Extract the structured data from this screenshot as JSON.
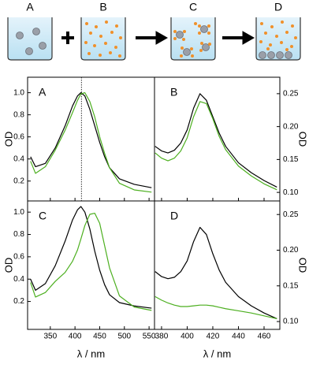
{
  "schematic": {
    "labels": [
      "A",
      "B",
      "C",
      "D"
    ]
  },
  "chart_data": [
    {
      "type": "line",
      "label": "A",
      "ylabel": "OD",
      "x": [
        310,
        320,
        340,
        360,
        380,
        395,
        405,
        412,
        420,
        430,
        440,
        450,
        460,
        470,
        490,
        520,
        555
      ],
      "xlim": [
        304,
        561
      ],
      "ylim": [
        0.02,
        1.14
      ],
      "yticks": [
        {
          "value": 0.2,
          "label": "0.2"
        },
        0.4,
        0.6,
        0.8,
        {
          "value": 1,
          "label": "1.0"
        }
      ],
      "vline": 413,
      "series": [
        {
          "color": "#000000",
          "values": [
            0.42,
            0.33,
            0.36,
            0.5,
            0.7,
            0.88,
            0.97,
            1.0,
            0.97,
            0.85,
            0.7,
            0.55,
            0.42,
            0.32,
            0.22,
            0.17,
            0.14
          ]
        },
        {
          "color": "#4caf1f",
          "values": [
            0.38,
            0.27,
            0.33,
            0.48,
            0.66,
            0.82,
            0.93,
            0.99,
            1.0,
            0.92,
            0.78,
            0.6,
            0.45,
            0.32,
            0.18,
            0.12,
            0.1
          ]
        }
      ]
    },
    {
      "type": "line",
      "label": "B",
      "ylabel": "OD",
      "x": [
        375,
        380,
        385,
        390,
        395,
        400,
        405,
        410,
        415,
        420,
        425,
        430,
        440,
        450,
        460,
        470
      ],
      "xlim": [
        374.5,
        472.3
      ],
      "y2lim": [
        0.087,
        0.275
      ],
      "y2ticks": [
        {
          "value": 0.1,
          "label": "0.10"
        },
        0.15,
        {
          "value": 0.2,
          "label": "0.20"
        },
        0.25
      ],
      "series": [
        {
          "color": "#000000",
          "axis": "y2",
          "values": [
            0.17,
            0.163,
            0.16,
            0.164,
            0.175,
            0.195,
            0.228,
            0.25,
            0.24,
            0.215,
            0.19,
            0.17,
            0.145,
            0.13,
            0.118,
            0.108
          ]
        },
        {
          "color": "#4caf1f",
          "axis": "y2",
          "values": [
            0.16,
            0.152,
            0.148,
            0.152,
            0.163,
            0.183,
            0.215,
            0.238,
            0.235,
            0.212,
            0.185,
            0.165,
            0.14,
            0.125,
            0.113,
            0.104
          ]
        }
      ]
    },
    {
      "type": "line",
      "label": "C",
      "ylabel": "OD",
      "xlabel": "λ / nm",
      "x": [
        310,
        320,
        340,
        360,
        380,
        395,
        405,
        412,
        420,
        430,
        440,
        450,
        460,
        470,
        490,
        520,
        555
      ],
      "xlim": [
        304,
        561
      ],
      "ylim": [
        -0.05,
        1.1
      ],
      "xticks": [
        350,
        400,
        450,
        500,
        550
      ],
      "yticks": [
        {
          "value": 0.2,
          "label": "0.2"
        },
        0.4,
        0.6,
        0.8,
        {
          "value": 1,
          "label": "1.0"
        }
      ],
      "series": [
        {
          "color": "#000000",
          "values": [
            0.4,
            0.3,
            0.36,
            0.52,
            0.74,
            0.93,
            1.02,
            1.05,
            1.0,
            0.85,
            0.65,
            0.48,
            0.35,
            0.26,
            0.19,
            0.16,
            0.14
          ]
        },
        {
          "color": "#4caf1f",
          "values": [
            0.37,
            0.24,
            0.28,
            0.38,
            0.46,
            0.56,
            0.66,
            0.76,
            0.88,
            0.98,
            0.99,
            0.9,
            0.7,
            0.5,
            0.25,
            0.15,
            0.12
          ]
        }
      ]
    },
    {
      "type": "line",
      "label": "D",
      "ylabel": "OD",
      "xlabel": "λ / nm",
      "x": [
        375,
        380,
        385,
        390,
        395,
        400,
        405,
        410,
        415,
        420,
        425,
        430,
        440,
        450,
        460,
        470
      ],
      "xlim": [
        374.5,
        472.3
      ],
      "y2lim": [
        0.089,
        0.269
      ],
      "xticks": [
        380,
        400,
        420,
        440,
        460
      ],
      "y2ticks": [
        {
          "value": 0.1,
          "label": "0.10"
        },
        0.15,
        {
          "value": 0.2,
          "label": "0.20"
        },
        0.25
      ],
      "series": [
        {
          "color": "#000000",
          "axis": "y2",
          "values": [
            0.17,
            0.163,
            0.16,
            0.162,
            0.17,
            0.185,
            0.212,
            0.232,
            0.222,
            0.195,
            0.172,
            0.155,
            0.135,
            0.122,
            0.112,
            0.104
          ]
        },
        {
          "color": "#4caf1f",
          "axis": "y2",
          "values": [
            0.135,
            0.13,
            0.126,
            0.123,
            0.121,
            0.121,
            0.122,
            0.123,
            0.123,
            0.122,
            0.12,
            0.118,
            0.115,
            0.112,
            0.108,
            0.104
          ]
        }
      ]
    }
  ]
}
